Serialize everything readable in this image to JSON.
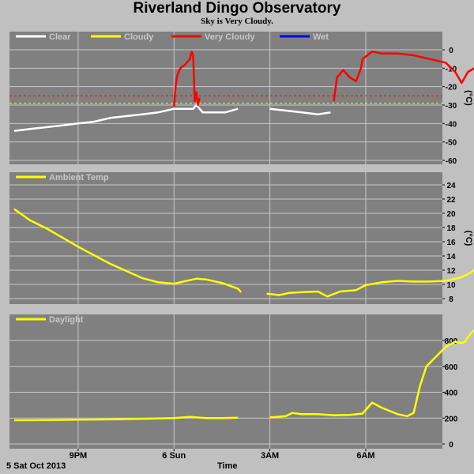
{
  "title": "Riverland Dingo Observatory",
  "subtitle": "Sky is Very Cloudy.",
  "date_label": "5 Sat Oct 2013",
  "time_label": "Time",
  "colors": {
    "background": "#c0c0c0",
    "plot_bg": "#808080",
    "grid": "#c8c8c8",
    "clear": "#ffffff",
    "cloudy": "#ffff00",
    "very_cloudy": "#ff0000",
    "wet": "#0000ff",
    "series": "#ffff00"
  },
  "chart_data": [
    {
      "type": "line",
      "panel": "sky",
      "ylabel": "(°C)",
      "yticks": [
        "0",
        "-10",
        "-20",
        "-30",
        "-40",
        "-50",
        "-60"
      ],
      "ylim": [
        -60,
        7
      ],
      "xlim": [
        19.0,
        8.3
      ],
      "legend": [
        {
          "label": "Clear",
          "color": "#ffffff"
        },
        {
          "label": "Cloudy",
          "color": "#ffff00"
        },
        {
          "label": "Very Cloudy",
          "color": "#ff0000"
        },
        {
          "label": "Wet",
          "color": "#0000ff"
        }
      ],
      "thresholds": [
        {
          "value": -25,
          "color": "#ff0000"
        },
        {
          "value": -29,
          "color": "#ffff00"
        }
      ],
      "series": [
        {
          "color": "#ffffff",
          "points": [
            [
              19.0,
              -44
            ],
            [
              19.5,
              -43
            ],
            [
              20.0,
              -42
            ],
            [
              20.5,
              -41
            ],
            [
              21.0,
              -40
            ],
            [
              21.5,
              -39
            ],
            [
              22.0,
              -37
            ],
            [
              22.5,
              -36
            ],
            [
              23.0,
              -35
            ],
            [
              23.5,
              -34
            ],
            [
              24.0,
              -32
            ],
            [
              24.6,
              -32
            ],
            [
              24.7,
              -30
            ],
            [
              24.9,
              -34
            ],
            [
              25.2,
              -34
            ],
            [
              25.6,
              -34
            ],
            [
              26.0,
              -32
            ]
          ]
        },
        {
          "color": "#ff0000",
          "points": [
            [
              24.0,
              -31
            ],
            [
              24.05,
              -20
            ],
            [
              24.1,
              -14
            ],
            [
              24.2,
              -10
            ],
            [
              24.35,
              -8
            ],
            [
              24.5,
              -5
            ],
            [
              24.55,
              -1
            ],
            [
              24.6,
              -3
            ],
            [
              24.65,
              -28
            ],
            [
              24.7,
              -23
            ],
            [
              24.75,
              -30
            ],
            [
              24.8,
              -26
            ]
          ]
        },
        {
          "color": "#ffffff",
          "points": [
            [
              27.0,
              -32
            ],
            [
              27.5,
              -33
            ],
            [
              28.0,
              -34
            ],
            [
              28.5,
              -35
            ],
            [
              28.9,
              -34
            ]
          ]
        },
        {
          "color": "#ff0000",
          "points": [
            [
              29.0,
              -28
            ],
            [
              29.1,
              -15
            ],
            [
              29.3,
              -11
            ],
            [
              29.5,
              -15
            ],
            [
              29.7,
              -17
            ],
            [
              29.85,
              -10
            ],
            [
              29.9,
              -5
            ],
            [
              30.2,
              -1
            ],
            [
              30.5,
              -2
            ],
            [
              31.0,
              -2
            ],
            [
              31.5,
              -3
            ],
            [
              32.0,
              -5
            ],
            [
              32.5,
              -7
            ],
            [
              32.8,
              -12
            ],
            [
              33.0,
              -18
            ],
            [
              33.2,
              -12
            ],
            [
              33.5,
              -9
            ],
            [
              33.6,
              -10
            ]
          ]
        }
      ]
    },
    {
      "type": "line",
      "panel": "ambient",
      "legend": [
        {
          "label": "Ambient Temp",
          "color": "#ffff00"
        }
      ],
      "ylabel": "(°C)",
      "yticks": [
        "8",
        "10",
        "12",
        "14",
        "16",
        "18",
        "20",
        "22",
        "24"
      ],
      "ylim": [
        7,
        25
      ],
      "xlim": [
        19.0,
        8.3
      ],
      "series": [
        {
          "color": "#ffff00",
          "points": [
            [
              19.0,
              20.6
            ],
            [
              19.5,
              19.0
            ],
            [
              20.0,
              17.9
            ],
            [
              20.5,
              16.6
            ],
            [
              21.0,
              15.3
            ],
            [
              21.5,
              14.1
            ],
            [
              22.0,
              12.9
            ],
            [
              22.5,
              11.9
            ],
            [
              23.0,
              10.9
            ],
            [
              23.5,
              10.3
            ],
            [
              24.0,
              10.1
            ],
            [
              24.3,
              10.4
            ],
            [
              24.7,
              10.8
            ],
            [
              25.0,
              10.7
            ],
            [
              25.5,
              10.2
            ],
            [
              26.0,
              9.4
            ],
            [
              26.1,
              8.9
            ]
          ]
        },
        {
          "color": "#ffff00",
          "points": [
            [
              26.9,
              8.7
            ],
            [
              27.3,
              8.5
            ],
            [
              27.6,
              8.8
            ],
            [
              28.0,
              8.9
            ],
            [
              28.5,
              9.0
            ],
            [
              28.8,
              8.3
            ],
            [
              29.2,
              9.0
            ],
            [
              29.7,
              9.2
            ],
            [
              30.0,
              9.9
            ],
            [
              30.5,
              10.3
            ],
            [
              31.0,
              10.5
            ],
            [
              31.5,
              10.4
            ],
            [
              32.0,
              10.4
            ],
            [
              32.5,
              10.5
            ],
            [
              33.0,
              11.0
            ],
            [
              33.3,
              11.7
            ],
            [
              33.6,
              12.8
            ]
          ]
        }
      ]
    },
    {
      "type": "line",
      "panel": "daylight",
      "legend": [
        {
          "label": "Daylight",
          "color": "#ffff00"
        }
      ],
      "yticks": [
        "0",
        "200",
        "400",
        "600",
        "800"
      ],
      "ylim": [
        0,
        920
      ],
      "xlim": [
        19.0,
        8.3
      ],
      "series": [
        {
          "color": "#ffff00",
          "points": [
            [
              19.0,
              183
            ],
            [
              20.0,
              185
            ],
            [
              21.0,
              188
            ],
            [
              22.0,
              190
            ],
            [
              23.0,
              195
            ],
            [
              24.0,
              200
            ],
            [
              24.5,
              210
            ],
            [
              25.0,
              200
            ],
            [
              25.5,
              200
            ],
            [
              26.0,
              203
            ]
          ]
        },
        {
          "color": "#ffff00",
          "points": [
            [
              27.0,
              205
            ],
            [
              27.5,
              215
            ],
            [
              27.7,
              240
            ],
            [
              28.0,
              230
            ],
            [
              28.5,
              230
            ],
            [
              29.0,
              222
            ],
            [
              29.5,
              225
            ],
            [
              29.9,
              235
            ],
            [
              30.2,
              320
            ],
            [
              30.5,
              280
            ],
            [
              31.0,
              230
            ],
            [
              31.3,
              215
            ],
            [
              31.5,
              240
            ],
            [
              31.7,
              450
            ],
            [
              31.9,
              600
            ],
            [
              32.3,
              700
            ],
            [
              32.5,
              750
            ],
            [
              32.8,
              790
            ],
            [
              33.0,
              780
            ],
            [
              33.1,
              790
            ],
            [
              33.3,
              860
            ],
            [
              33.4,
              880
            ],
            [
              33.5,
              830
            ],
            [
              33.6,
              820
            ]
          ]
        }
      ]
    }
  ],
  "x_ticks": [
    {
      "hour": 21,
      "label": "9PM"
    },
    {
      "hour": 24,
      "label": "6 Sun"
    },
    {
      "hour": 27,
      "label": "3AM"
    },
    {
      "hour": 30,
      "label": "6AM"
    }
  ]
}
